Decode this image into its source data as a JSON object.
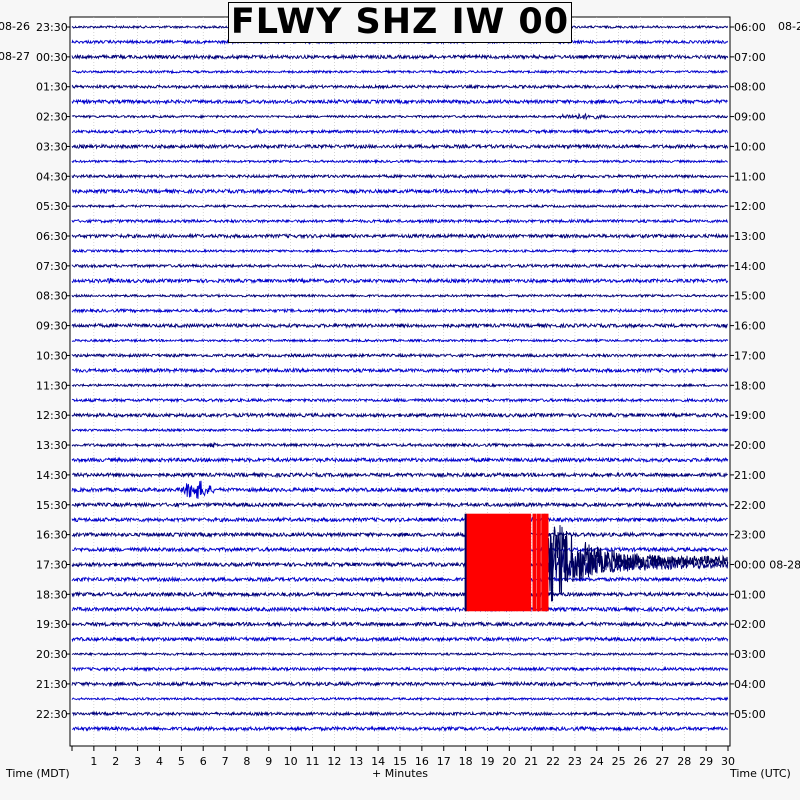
{
  "chart_data": {
    "type": "helicorder",
    "title": "FLWY SHZ IW 00",
    "xlabel": "+ Minutes",
    "left_axis_title": "Time (MDT)",
    "right_axis_title": "Time (UTC)",
    "x_range": [
      0,
      30
    ],
    "x_ticks": [
      1,
      2,
      3,
      4,
      5,
      6,
      7,
      8,
      9,
      10,
      11,
      12,
      13,
      14,
      15,
      16,
      17,
      18,
      19,
      20,
      21,
      22,
      23,
      24,
      25,
      26,
      27,
      28,
      29,
      30
    ],
    "trace_colors": [
      "#00007a",
      "#0000cc"
    ],
    "clip_color": "#ff0000",
    "rows_per_hour": 2,
    "top_left_dates": [
      "08-26",
      "08-27"
    ],
    "top_right_date": "08-2",
    "right_date_change": {
      "label": "00:00",
      "date": "08-28"
    },
    "left_hour_labels": [
      "23:30",
      "00:30",
      "01:30",
      "02:30",
      "03:30",
      "04:30",
      "05:30",
      "06:30",
      "07:30",
      "08:30",
      "09:30",
      "10:30",
      "11:30",
      "12:30",
      "13:30",
      "14:30",
      "15:30",
      "16:30",
      "17:30",
      "18:30",
      "19:30",
      "20:30",
      "21:30",
      "22:30"
    ],
    "right_hour_labels": [
      "06:00",
      "07:00",
      "08:00",
      "09:00",
      "10:00",
      "11:00",
      "12:00",
      "13:00",
      "14:00",
      "15:00",
      "16:00",
      "17:00",
      "18:00",
      "19:00",
      "20:00",
      "21:00",
      "22:00",
      "23:00",
      "00:00",
      "01:00",
      "02:00",
      "03:00",
      "04:00",
      "05:00"
    ],
    "events": [
      {
        "name": "small-event",
        "row": 6,
        "minute_start": 22.0,
        "minute_end": 24.5,
        "amplitude": 0.25
      },
      {
        "name": "blip",
        "row": 7,
        "minute_start": 8.3,
        "minute_end": 8.7,
        "amplitude": 0.35
      },
      {
        "name": "blip",
        "row": 17,
        "minute_start": 1.6,
        "minute_end": 1.9,
        "amplitude": 0.2
      },
      {
        "name": "blip",
        "row": 28,
        "minute_start": 6.3,
        "minute_end": 6.6,
        "amplitude": 0.25
      },
      {
        "name": "local-event",
        "row": 31,
        "minute_start": 4.9,
        "minute_end": 6.5,
        "amplitude": 1.2
      },
      {
        "name": "earthquake-coda",
        "row": 36,
        "minute_start": 21.7,
        "minute_end": 30.0,
        "amplitude": 2.4
      }
    ],
    "clipped_region": {
      "minute_start": 18.0,
      "minute_end": 21.7,
      "first_row": 33,
      "last_row": 39
    }
  }
}
